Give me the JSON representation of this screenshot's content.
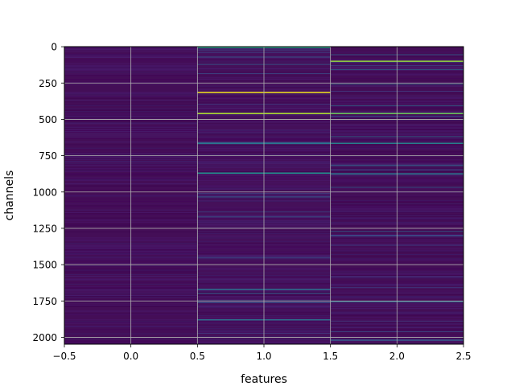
{
  "chart_data": {
    "type": "heatmap",
    "title": "",
    "xlabel": "features",
    "ylabel": "channels",
    "columns": 3,
    "rows": 2048,
    "xlim": [
      -0.5,
      2.5
    ],
    "ylim": [
      2047.5,
      -0.5
    ],
    "y_inverted": true,
    "xticks": [
      -0.5,
      0.0,
      0.5,
      1.0,
      1.5,
      2.0,
      2.5
    ],
    "xtick_labels": [
      "−0.5",
      "0.0",
      "0.5",
      "1.0",
      "1.5",
      "2.0",
      "2.5"
    ],
    "yticks": [
      0,
      250,
      500,
      750,
      1000,
      1250,
      1500,
      1750,
      2000
    ],
    "ytick_labels": [
      "0",
      "250",
      "500",
      "750",
      "1000",
      "1250",
      "1500",
      "1750",
      "2000"
    ],
    "grid": true,
    "colormap": "viridis",
    "background_color": "#440f56",
    "column_base_colors": [
      "#440e57",
      "#45105a",
      "#440e56"
    ],
    "bright_lines": [
      {
        "column": 1,
        "channel": 315,
        "color": "#f3e51d"
      },
      {
        "column": 1,
        "channel": 460,
        "color": "#b7de2a"
      },
      {
        "column": 2,
        "channel": 100,
        "color": "#93d741"
      },
      {
        "column": 2,
        "channel": 460,
        "color": "#6ccd5a"
      },
      {
        "column": 1,
        "channel": 5,
        "color": "#26a884"
      },
      {
        "column": 1,
        "channel": 665,
        "color": "#2a788e"
      },
      {
        "column": 2,
        "channel": 665,
        "color": "#27808e"
      },
      {
        "column": 1,
        "channel": 870,
        "color": "#21918c"
      },
      {
        "column": 2,
        "channel": 875,
        "color": "#2a788e"
      },
      {
        "column": 1,
        "channel": 1670,
        "color": "#2c728e"
      },
      {
        "column": 2,
        "channel": 1755,
        "color": "#31688e"
      },
      {
        "column": 1,
        "channel": 1760,
        "color": "#3b528b"
      },
      {
        "column": 1,
        "channel": 1880,
        "color": "#2d708e"
      },
      {
        "column": 2,
        "channel": 1300,
        "color": "#3b528b"
      },
      {
        "column": 2,
        "channel": 2020,
        "color": "#355f8d"
      }
    ]
  }
}
